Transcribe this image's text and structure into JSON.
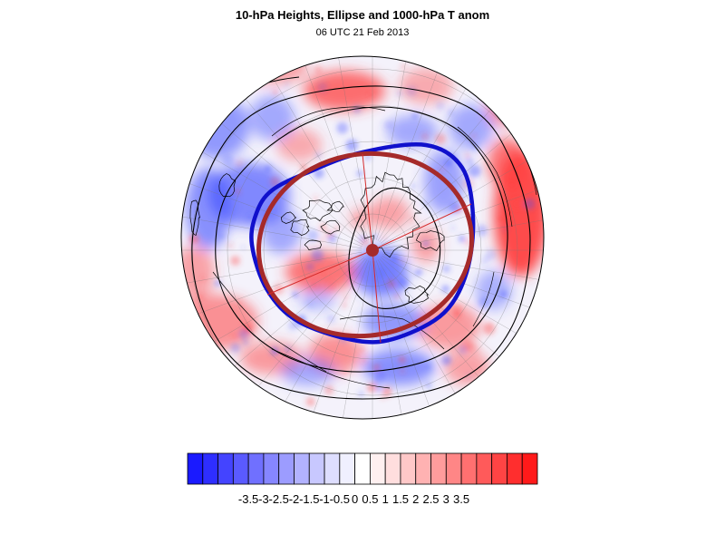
{
  "header": {
    "title": "10-hPa Heights, Ellipse and 1000-hPa T anom",
    "subtitle": "06 UTC 21 Feb 2013"
  },
  "colorbar": {
    "labels": [
      "-3.5",
      "-3",
      "-2.5",
      "-2",
      "-1.5",
      "-1",
      "-0.5",
      "0",
      "0.5",
      "1",
      "1.5",
      "2",
      "2.5",
      "3",
      "3.5"
    ],
    "colors": [
      "#1a1aff",
      "#2e2eff",
      "#4444ff",
      "#5a5aff",
      "#7070ff",
      "#8686ff",
      "#9c9cff",
      "#b2b2ff",
      "#c8c8ff",
      "#dedeff",
      "#f0f0ff",
      "#ffffff",
      "#fff0f0",
      "#ffdede",
      "#ffc8c8",
      "#ffb2b2",
      "#ff9c9c",
      "#ff8686",
      "#ff7070",
      "#ff5a5a",
      "#ff4444",
      "#ff2e2e",
      "#ff1a1a"
    ]
  },
  "map": {
    "colors": {
      "ellipse_brown": "#a52a2a",
      "vortex_edge_blue": "#1010cc",
      "height_contours": "#000000",
      "coastline": "#000000",
      "graticule": "#777777",
      "warm_anomaly": "#ff4040",
      "cold_anomaly": "#4050ff"
    }
  }
}
